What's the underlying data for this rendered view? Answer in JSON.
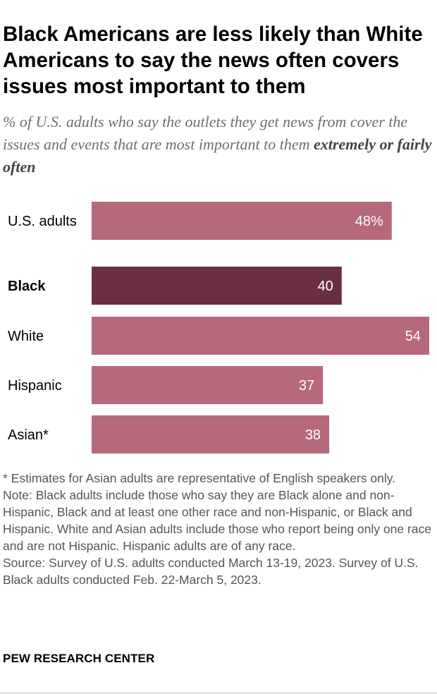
{
  "title": "Black Americans are less likely than White Americans to say the news often covers issues most important to them",
  "subtitle": {
    "text": "% of U.S. adults who say the outlets they get news from cover the issues and events that are most important to them",
    "emphasis": "extremely or fairly often"
  },
  "notes": {
    "asterisk": "* Estimates for Asian adults are representative of English speakers only.",
    "note": "Note: Black adults include those who say they are Black alone and non-Hispanic, Black and at least one other race and non-Hispanic, or Black and Hispanic. White and Asian adults include those who report being only one race and are not Hispanic. Hispanic adults are of any race.",
    "source": "Source: Survey of U.S. adults conducted March 13-19, 2023. Survey of U.S. Black adults conducted Feb. 22-March 5, 2023."
  },
  "brand": "PEW RESEARCH CENTER",
  "colors": {
    "bar": "#b5697b",
    "highlight": "#6b2f42",
    "bar_label": "#ffffff",
    "category_text": "#000000"
  },
  "chart_data": {
    "type": "bar",
    "orientation": "horizontal",
    "categories": [
      "U.S. adults",
      "Black",
      "White",
      "Hispanic",
      "Asian*"
    ],
    "values": [
      48,
      40,
      54,
      37,
      38
    ],
    "value_labels": [
      "48%",
      "40",
      "54",
      "37",
      "38"
    ],
    "highlight": "Black",
    "xlim": [
      0,
      54
    ],
    "grid": false,
    "legend": "none"
  }
}
